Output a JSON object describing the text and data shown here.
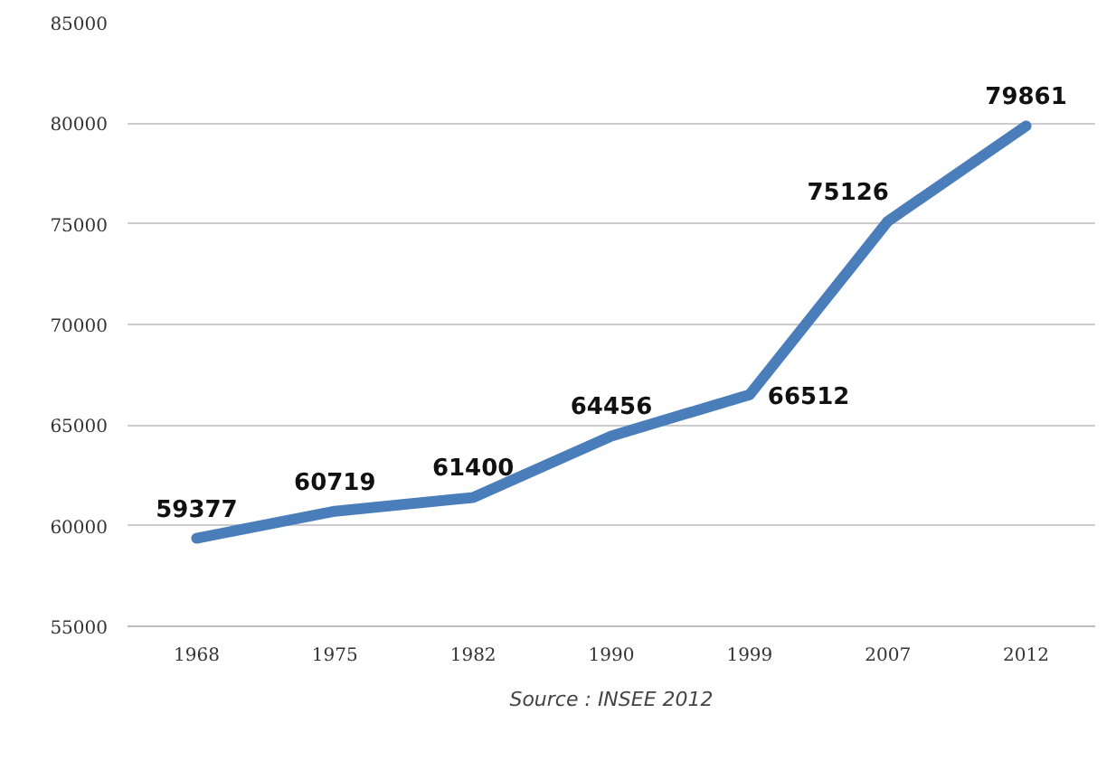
{
  "chart_data": {
    "type": "line",
    "categories": [
      "1968",
      "1975",
      "1982",
      "1990",
      "1999",
      "2007",
      "2012"
    ],
    "series": [
      {
        "color": "#4a7ebb",
        "values": [
          59377,
          60719,
          61400,
          64456,
          66512,
          75126,
          79861
        ]
      }
    ],
    "ylim": [
      55000,
      85000
    ],
    "yticks": [
      55000,
      60000,
      65000,
      70000,
      75000,
      80000,
      85000
    ],
    "grid": "y",
    "data_labels": true,
    "marker": "none",
    "line_style": "solid",
    "annotations": [
      "Source : INSEE 2012"
    ]
  }
}
